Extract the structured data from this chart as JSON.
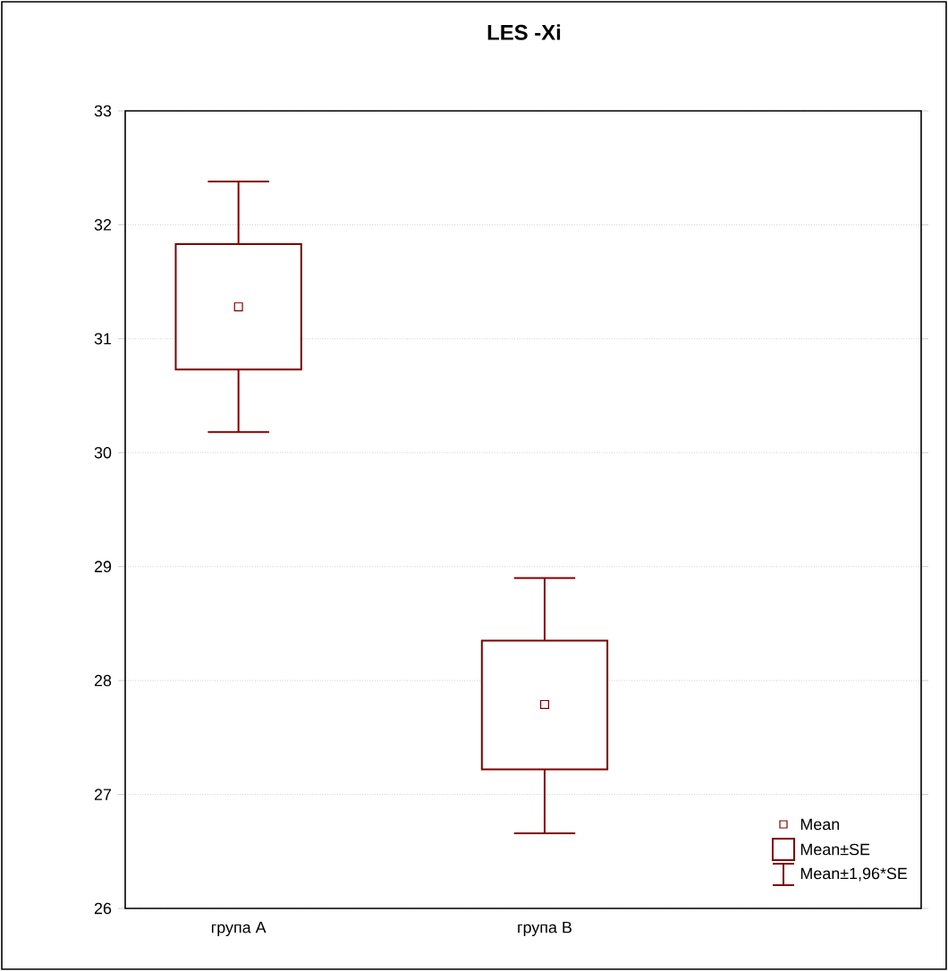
{
  "chart_data": {
    "type": "box",
    "title": "LES -Xi",
    "categories": [
      "група A",
      "група B"
    ],
    "color": "#800000",
    "boxes": [
      {
        "low": 30.18,
        "q1": 30.73,
        "median": 31.28,
        "q3": 31.83,
        "high": 32.38
      },
      {
        "low": 26.66,
        "q1": 27.22,
        "median": 27.79,
        "q3": 28.35,
        "high": 28.9
      }
    ],
    "ylim": [
      26,
      33
    ],
    "yticks": [
      26,
      27,
      28,
      29,
      30,
      31,
      32,
      33
    ],
    "grid": "y",
    "annotations": [
      "Mean",
      "Mean±SE",
      "Mean±1,96*SE"
    ]
  }
}
